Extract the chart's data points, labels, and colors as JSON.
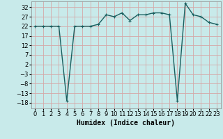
{
  "x": [
    0,
    1,
    2,
    3,
    4,
    5,
    6,
    7,
    8,
    9,
    10,
    11,
    12,
    13,
    14,
    15,
    16,
    17,
    18,
    19,
    20,
    21,
    22,
    23
  ],
  "y": [
    22,
    22,
    22,
    22,
    -17,
    22,
    22,
    22,
    23,
    28,
    27,
    29,
    25,
    28,
    28,
    29,
    29,
    28,
    -17,
    34,
    28,
    27,
    24,
    23
  ],
  "line_color": "#1a6060",
  "marker_color": "#1a6060",
  "bg_color": "#c8eaea",
  "grid_color": "#d4a8a8",
  "xlabel": "Humidex (Indice chaleur)",
  "yticks": [
    -18,
    -13,
    -8,
    -3,
    2,
    7,
    12,
    17,
    22,
    27,
    32
  ],
  "ylim": [
    -21,
    35
  ],
  "xlim": [
    -0.5,
    23.5
  ],
  "xlabel_fontsize": 7,
  "tick_fontsize": 6,
  "marker_size": 3,
  "line_width": 1
}
